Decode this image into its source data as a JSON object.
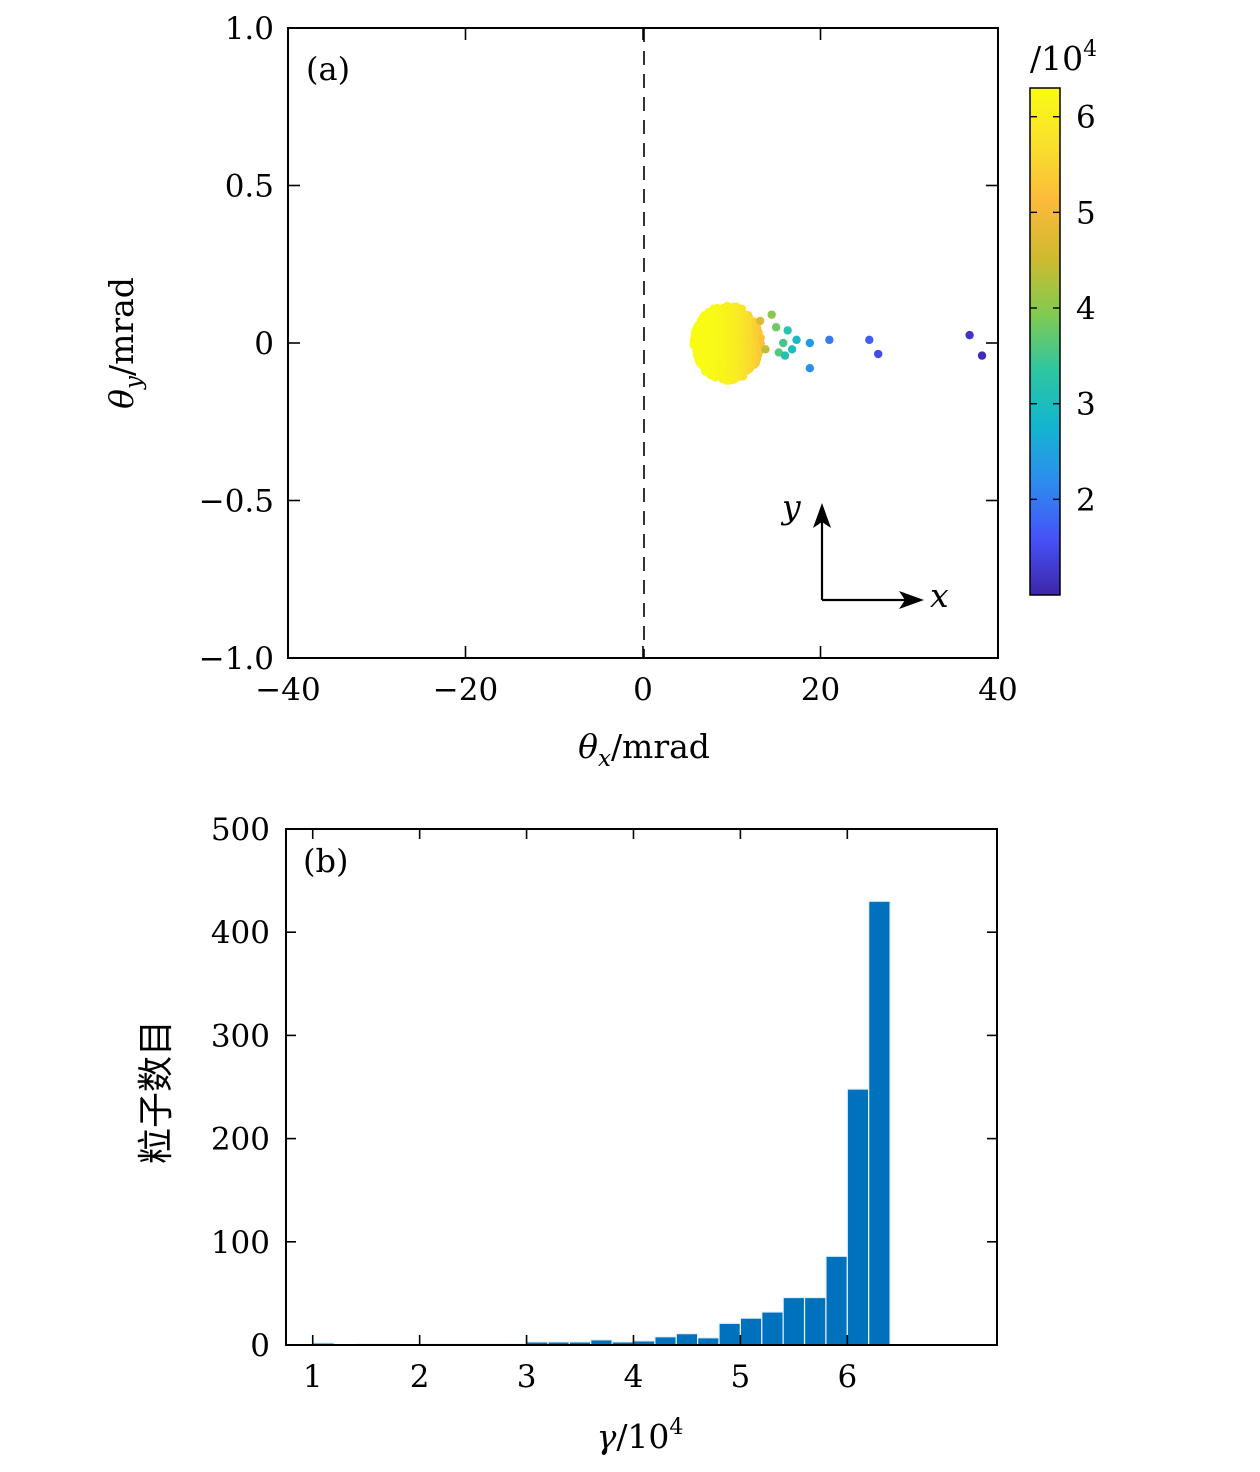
{
  "chart_data": [
    {
      "type": "scatter",
      "panel_label": "(a)",
      "xlabel_symbol": "θ",
      "xlabel_sub": "x",
      "xlabel_unit": "/mrad",
      "ylabel_symbol": "θ",
      "ylabel_sub": "y",
      "ylabel_unit": "/mrad",
      "xlim": [
        -40,
        40
      ],
      "ylim": [
        -1.0,
        1.0
      ],
      "xticks": [
        -40,
        -20,
        0,
        20,
        40
      ],
      "xtick_labels": [
        "−40",
        "−20",
        "0",
        "20",
        "40"
      ],
      "yticks": [
        1.0,
        0.5,
        0,
        -0.5,
        -1.0
      ],
      "ytick_labels": [
        "1.0",
        "0.5",
        "0",
        "−0.5",
        "−1.0"
      ],
      "reference_line": {
        "x": 0,
        "style": "dashed"
      },
      "colorbar": {
        "title": "/10",
        "title_sup": "4",
        "range": [
          1.0,
          6.3
        ],
        "ticks": [
          2,
          3,
          4,
          5,
          6
        ],
        "tick_labels": [
          "2",
          "3",
          "4",
          "5",
          "6"
        ],
        "colormap": [
          "#3e26a8",
          "#4652f7",
          "#2d8cef",
          "#13b5d0",
          "#2fc6a0",
          "#83ca50",
          "#d0ba2f",
          "#fcba3b",
          "#f9e02c",
          "#f9fb15"
        ]
      },
      "cluster": {
        "x_center": 9.5,
        "x_halfwidth": 3.8,
        "y_halfwidth": 0.12,
        "count": 650,
        "gamma_range": [
          5.2,
          6.3
        ]
      },
      "points": [
        {
          "x": 13.2,
          "y": 0.07,
          "gamma": 4.7
        },
        {
          "x": 13.8,
          "y": -0.02,
          "gamma": 4.4
        },
        {
          "x": 14.5,
          "y": 0.09,
          "gamma": 4.0
        },
        {
          "x": 15.0,
          "y": 0.05,
          "gamma": 3.8
        },
        {
          "x": 15.3,
          "y": -0.03,
          "gamma": 3.6
        },
        {
          "x": 15.8,
          "y": 0.0,
          "gamma": 3.5
        },
        {
          "x": 16.3,
          "y": 0.04,
          "gamma": 3.2
        },
        {
          "x": 16.8,
          "y": -0.02,
          "gamma": 3.0
        },
        {
          "x": 17.3,
          "y": 0.01,
          "gamma": 2.9
        },
        {
          "x": 16.0,
          "y": -0.04,
          "gamma": 3.1
        },
        {
          "x": 18.8,
          "y": 0.0,
          "gamma": 2.4
        },
        {
          "x": 18.8,
          "y": -0.08,
          "gamma": 2.2
        },
        {
          "x": 21.0,
          "y": 0.01,
          "gamma": 2.0
        },
        {
          "x": 25.5,
          "y": 0.01,
          "gamma": 1.7
        },
        {
          "x": 26.5,
          "y": -0.035,
          "gamma": 1.5
        },
        {
          "x": 36.8,
          "y": 0.025,
          "gamma": 1.2
        },
        {
          "x": 38.2,
          "y": -0.04,
          "gamma": 1.1
        }
      ],
      "axes_arrows": {
        "x_label": "x",
        "y_label": "y"
      }
    },
    {
      "type": "bar",
      "panel_label": "(b)",
      "xlabel_symbol": "γ",
      "xlabel_unit": "/10",
      "xlabel_sup": "4",
      "ylabel": "粒子数目",
      "xlim": [
        0.75,
        7.4
      ],
      "ylim": [
        0,
        500
      ],
      "xticks": [
        1,
        2,
        3,
        4,
        5,
        6
      ],
      "xtick_labels": [
        "1",
        "2",
        "3",
        "4",
        "5",
        "6"
      ],
      "yticks": [
        0,
        100,
        200,
        300,
        400,
        500
      ],
      "ytick_labels": [
        "0",
        "100",
        "200",
        "300",
        "400",
        "500"
      ],
      "bar_color": "#0072bd",
      "bin_width": 0.2,
      "bin_starts": [
        1.0,
        1.2,
        1.4,
        1.6,
        1.8,
        2.0,
        2.2,
        2.4,
        2.6,
        2.8,
        3.0,
        3.2,
        3.4,
        3.6,
        3.8,
        4.0,
        4.2,
        4.4,
        4.6,
        4.8,
        5.0,
        5.2,
        5.4,
        5.6,
        5.8,
        6.0,
        6.2
      ],
      "values": [
        2,
        0,
        1,
        1,
        0,
        1,
        1,
        1,
        1,
        1,
        3,
        3,
        3,
        5,
        3,
        4,
        8,
        11,
        7,
        21,
        26,
        32,
        46,
        46,
        86,
        248,
        430
      ]
    }
  ]
}
